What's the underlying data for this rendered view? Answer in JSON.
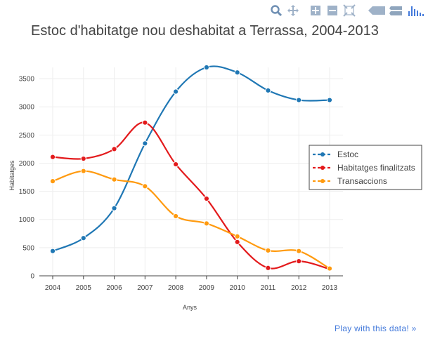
{
  "toolbar": {
    "icons": [
      "zoom-icon",
      "pan-icon",
      "zoom-in-icon",
      "zoom-out-icon",
      "autoscale-icon",
      "hover-closest-icon",
      "hover-compare-icon",
      "plotly-logo-icon"
    ]
  },
  "link": {
    "play_label": "Play with this data! »"
  },
  "colors": {
    "estoc": "#1f77b4",
    "habitatges": "#e31a1c",
    "transaccions": "#ff9a0e",
    "grid": "#eeeeee",
    "link": "#447adb"
  },
  "chart_data": {
    "type": "line",
    "title": "Estoc d'habitatge nou deshabitat a Terrassa, 2004-2013",
    "xlabel": "Anys",
    "ylabel": "Habitatges",
    "x": [
      "2004",
      "2005",
      "2006",
      "2007",
      "2008",
      "2009",
      "2010",
      "2011",
      "2012",
      "2013"
    ],
    "ylim": [
      0,
      3700
    ],
    "yticks": [
      0,
      500,
      1000,
      1500,
      2000,
      2500,
      3000,
      3500
    ],
    "grid": true,
    "legend_position": "right",
    "series": [
      {
        "name": "Estoc",
        "color": "#1f77b4",
        "values": [
          440,
          670,
          1200,
          2350,
          3270,
          3700,
          3610,
          3290,
          3120,
          3120
        ]
      },
      {
        "name": "Habitatges finalitzats",
        "color": "#e31a1c",
        "values": [
          2110,
          2080,
          2250,
          2720,
          1980,
          1370,
          600,
          140,
          260,
          120
        ]
      },
      {
        "name": "Transaccions",
        "color": "#ff9a0e",
        "values": [
          1680,
          1860,
          1710,
          1590,
          1060,
          930,
          700,
          450,
          440,
          130
        ]
      }
    ]
  }
}
